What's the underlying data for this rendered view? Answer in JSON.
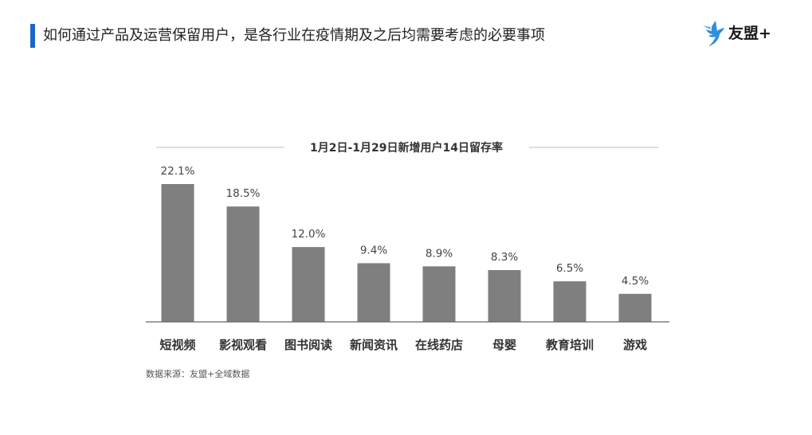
{
  "header": {
    "title": "如何通过产品及运营保留用户，是各行业在疫情期及之后均需要考虑的必要事项",
    "accent_color": "#1b67c9"
  },
  "brand": {
    "name": "友盟+",
    "logo_icon": "umeng-bird-logo-icon",
    "logo_color": "#2e8ee0"
  },
  "chart_data": {
    "type": "bar",
    "title": "1月2日-1月29日新增用户14日留存率",
    "categories": [
      "短视频",
      "影视观看",
      "图书阅读",
      "新闻资讯",
      "在线药店",
      "母婴",
      "教育培训",
      "游戏"
    ],
    "values": [
      22.1,
      18.5,
      12.0,
      9.4,
      8.9,
      8.3,
      6.5,
      4.5
    ],
    "value_labels": [
      "22.1%",
      "18.5%",
      "12.0%",
      "9.4%",
      "8.9%",
      "8.3%",
      "6.5%",
      "4.5%"
    ],
    "unit": "%",
    "ylim": [
      0,
      22.1
    ],
    "grid": false,
    "bar_color": "#7f7f7f"
  },
  "footer": {
    "source": "数据来源：友盟+全域数据"
  }
}
